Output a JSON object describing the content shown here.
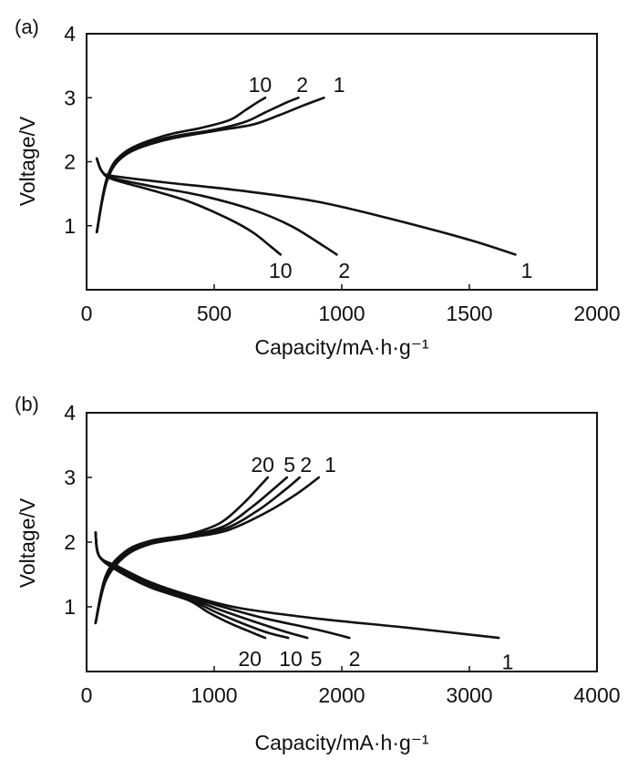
{
  "chart_data": [
    {
      "type": "line",
      "panel_label": "(a)",
      "xlabel": "Capacity/mA·h·g⁻¹",
      "ylabel": "Voltage/V",
      "xlim": [
        0,
        2000
      ],
      "ylim": [
        0,
        4
      ],
      "xticks": [
        "0",
        "500",
        "1000",
        "1500",
        "2000"
      ],
      "yticks": [
        "1",
        "2",
        "3",
        "4"
      ],
      "series": [
        {
          "name": "1",
          "kind": "discharge",
          "x": [
            40,
            60,
            100,
            300,
            600,
            900,
            1200,
            1500,
            1680
          ],
          "y": [
            2.05,
            1.85,
            1.78,
            1.68,
            1.55,
            1.38,
            1.1,
            0.78,
            0.55
          ]
        },
        {
          "name": "2",
          "kind": "discharge",
          "x": [
            40,
            60,
            100,
            250,
            450,
            650,
            800,
            930,
            980
          ],
          "y": [
            2.05,
            1.85,
            1.75,
            1.62,
            1.47,
            1.25,
            1.0,
            0.68,
            0.55
          ]
        },
        {
          "name": "10",
          "kind": "discharge",
          "x": [
            40,
            60,
            100,
            250,
            400,
            550,
            650,
            720,
            760
          ],
          "y": [
            2.05,
            1.85,
            1.73,
            1.56,
            1.38,
            1.12,
            0.9,
            0.68,
            0.55
          ]
        },
        {
          "name": "1",
          "kind": "charge",
          "x": [
            40,
            80,
            150,
            300,
            500,
            650,
            750,
            850,
            930
          ],
          "y": [
            0.9,
            1.7,
            2.1,
            2.33,
            2.48,
            2.58,
            2.72,
            2.88,
            3.0
          ]
        },
        {
          "name": "2",
          "kind": "charge",
          "x": [
            40,
            80,
            150,
            300,
            500,
            620,
            700,
            780,
            830
          ],
          "y": [
            0.9,
            1.7,
            2.13,
            2.36,
            2.5,
            2.62,
            2.77,
            2.92,
            3.0
          ]
        },
        {
          "name": "10",
          "kind": "charge",
          "x": [
            40,
            80,
            150,
            300,
            450,
            560,
            620,
            670,
            700
          ],
          "y": [
            0.9,
            1.75,
            2.15,
            2.4,
            2.53,
            2.65,
            2.8,
            2.93,
            3.0
          ]
        }
      ],
      "annotations": [
        {
          "text": "10",
          "x": 680,
          "y": 3.2
        },
        {
          "text": "2",
          "x": 845,
          "y": 3.2
        },
        {
          "text": "1",
          "x": 990,
          "y": 3.2
        },
        {
          "text": "10",
          "x": 760,
          "y": 0.3
        },
        {
          "text": "2",
          "x": 1010,
          "y": 0.3
        },
        {
          "text": "1",
          "x": 1725,
          "y": 0.3
        }
      ]
    },
    {
      "type": "line",
      "panel_label": "(b)",
      "xlabel": "Capacity/mA·h·g⁻¹",
      "ylabel": "Voltage/V",
      "xlim": [
        0,
        4000
      ],
      "ylim": [
        0,
        4
      ],
      "xticks": [
        "0",
        "1000",
        "2000",
        "3000",
        "4000"
      ],
      "yticks": [
        "1",
        "2",
        "3",
        "4"
      ],
      "series": [
        {
          "name": "1",
          "kind": "discharge",
          "x": [
            70,
            100,
            250,
            500,
            800,
            1200,
            1800,
            2500,
            3230
          ],
          "y": [
            2.15,
            1.78,
            1.62,
            1.38,
            1.18,
            0.98,
            0.82,
            0.68,
            0.52
          ]
        },
        {
          "name": "2",
          "kind": "discharge",
          "x": [
            70,
            100,
            250,
            500,
            800,
            1100,
            1400,
            1800,
            2060
          ],
          "y": [
            2.15,
            1.78,
            1.6,
            1.36,
            1.16,
            0.98,
            0.82,
            0.65,
            0.52
          ]
        },
        {
          "name": "5",
          "kind": "discharge",
          "x": [
            70,
            100,
            250,
            500,
            800,
            1050,
            1300,
            1550,
            1730
          ],
          "y": [
            2.15,
            1.78,
            1.58,
            1.34,
            1.14,
            0.95,
            0.78,
            0.62,
            0.52
          ]
        },
        {
          "name": "10",
          "kind": "discharge",
          "x": [
            70,
            100,
            250,
            500,
            800,
            1000,
            1200,
            1420,
            1580
          ],
          "y": [
            2.15,
            1.78,
            1.56,
            1.32,
            1.12,
            0.93,
            0.76,
            0.6,
            0.52
          ]
        },
        {
          "name": "20",
          "kind": "discharge",
          "x": [
            70,
            100,
            250,
            500,
            800,
            950,
            1120,
            1300,
            1400
          ],
          "y": [
            2.15,
            1.78,
            1.55,
            1.3,
            1.1,
            0.92,
            0.75,
            0.6,
            0.52
          ]
        },
        {
          "name": "1",
          "kind": "charge",
          "x": [
            70,
            150,
            300,
            500,
            800,
            1100,
            1400,
            1650,
            1820
          ],
          "y": [
            0.75,
            1.4,
            1.78,
            1.97,
            2.07,
            2.18,
            2.45,
            2.75,
            3.0
          ]
        },
        {
          "name": "2",
          "kind": "charge",
          "x": [
            70,
            150,
            300,
            500,
            800,
            1100,
            1350,
            1550,
            1670
          ],
          "y": [
            0.75,
            1.42,
            1.8,
            1.99,
            2.09,
            2.22,
            2.5,
            2.8,
            3.0
          ]
        },
        {
          "name": "5",
          "kind": "charge",
          "x": [
            70,
            150,
            300,
            500,
            800,
            1080,
            1300,
            1470,
            1570
          ],
          "y": [
            0.75,
            1.45,
            1.82,
            2.0,
            2.1,
            2.25,
            2.55,
            2.83,
            3.0
          ]
        },
        {
          "name": "20",
          "kind": "charge",
          "x": [
            70,
            150,
            300,
            500,
            800,
            1050,
            1230,
            1350,
            1420
          ],
          "y": [
            0.75,
            1.48,
            1.85,
            2.02,
            2.12,
            2.3,
            2.6,
            2.85,
            3.0
          ]
        }
      ],
      "annotations": [
        {
          "text": "20",
          "x": 1380,
          "y": 3.2
        },
        {
          "text": "5",
          "x": 1590,
          "y": 3.2
        },
        {
          "text": "2",
          "x": 1720,
          "y": 3.2
        },
        {
          "text": "1",
          "x": 1910,
          "y": 3.2
        },
        {
          "text": "20",
          "x": 1280,
          "y": 0.2
        },
        {
          "text": "10",
          "x": 1600,
          "y": 0.2
        },
        {
          "text": "5",
          "x": 1800,
          "y": 0.2
        },
        {
          "text": "2",
          "x": 2100,
          "y": 0.2
        },
        {
          "text": "1",
          "x": 3300,
          "y": 0.15
        }
      ]
    }
  ]
}
